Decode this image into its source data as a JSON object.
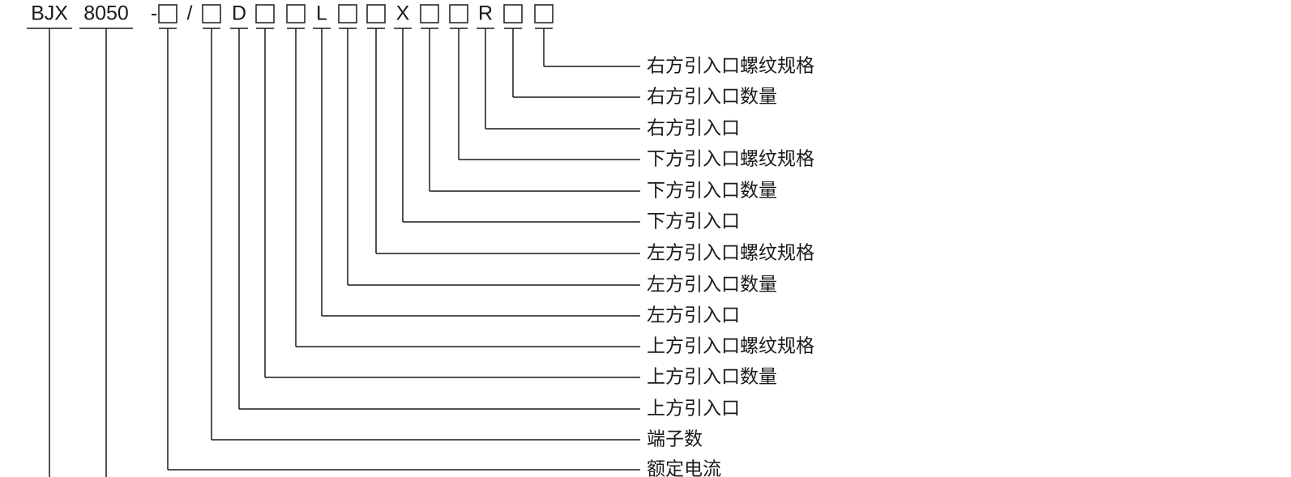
{
  "code": {
    "tokens": [
      "BJX",
      "8050",
      "-",
      "/",
      "D",
      "L",
      "X",
      "R"
    ]
  },
  "labels": [
    "右方引入口螺纹规格",
    "右方引入口数量",
    "右方引入口",
    "下方引入口螺纹规格",
    "下方引入口数量",
    "下方引入口",
    "左方引入口螺纹规格",
    "左方引入口数量",
    "左方引入口",
    "上方引入口螺纹规格",
    "上方引入口数量",
    "上方引入口",
    "端子数",
    "额定电流"
  ]
}
